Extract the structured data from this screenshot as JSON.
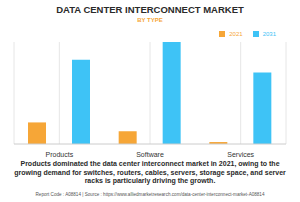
{
  "chart_data": {
    "type": "bar",
    "title": "DATA CENTER INTERCONNECT MARKET",
    "subtitle": "BY TYPE",
    "categories": [
      "Products",
      "Software",
      "Services"
    ],
    "series": [
      {
        "name": "2021",
        "color": "#f6a637",
        "values": [
          22,
          13,
          2
        ]
      },
      {
        "name": "2031",
        "color": "#3ec3f6",
        "values": [
          86,
          104,
          73
        ]
      }
    ],
    "legend": "top-right",
    "grid": true,
    "tick_labels": "x",
    "caption": "Products dominated the data center interconnect market in 2021, owing to the growing demand for switches, routers, cables, servers, storage space, and server racks is particularly driving the growth.",
    "footer": "Report Code : A08814 | Source : https://www.alliedmarketresearch.com/data-center-interconnect-market-A08814"
  }
}
